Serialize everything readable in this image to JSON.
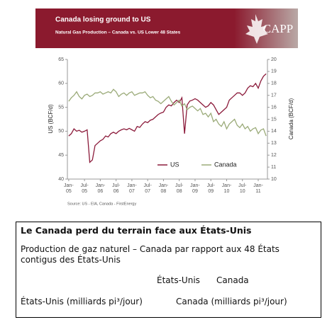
{
  "header": {
    "title": "Canada losing ground to US",
    "subtitle": "Natural Gas Production – Canada vs. US Lower 48 States",
    "logo": "CAPP"
  },
  "chart_data": {
    "type": "line",
    "categories": [
      "Jan-05",
      null,
      null,
      null,
      null,
      null,
      "Jul-05",
      null,
      null,
      null,
      null,
      null,
      "Jan-06",
      null,
      null,
      null,
      null,
      null,
      "Jul-06",
      null,
      null,
      null,
      null,
      null,
      "Jan-07",
      null,
      null,
      null,
      null,
      null,
      "Jul-07",
      null,
      null,
      null,
      null,
      null,
      "Jan-08",
      null,
      null,
      null,
      null,
      null,
      "Jul-08",
      null,
      null,
      null,
      null,
      null,
      "Jan-09",
      null,
      null,
      null,
      null,
      null,
      "Jul-09",
      null,
      null,
      null,
      null,
      null,
      "Jan-10",
      null,
      null,
      null,
      null,
      null,
      "Jul-10",
      null,
      null,
      null,
      null,
      null,
      "Jan-11",
      null,
      null,
      null
    ],
    "series": [
      {
        "name": "US",
        "color": "#8b1a3a",
        "values": [
          49,
          49.5,
          50.5,
          50,
          50.2,
          49.8,
          50,
          50.3,
          43.5,
          44,
          47,
          47.5,
          48,
          48.3,
          49,
          48.8,
          49.5,
          49.8,
          49.5,
          50,
          50.3,
          50.5,
          50.3,
          50.6,
          50.3,
          50,
          51,
          50.8,
          51.5,
          52,
          51.8,
          52.3,
          52.5,
          53,
          53.5,
          53.8,
          54,
          55,
          55.5,
          55.3,
          56,
          56.5,
          56,
          57,
          49.5,
          55.5,
          56.3,
          56.5,
          56.8,
          56.5,
          56,
          55.5,
          55,
          55.3,
          56,
          55.5,
          54.5,
          53.5,
          54,
          54.5,
          55,
          56.5,
          57,
          57.5,
          58,
          58,
          57.5,
          58,
          59,
          59.5,
          59.3,
          60,
          59,
          60.5,
          61.5,
          62
        ]
      },
      {
        "name": "Canada",
        "color": "#9aaa78",
        "axis": "y2",
        "values": [
          16.5,
          16.8,
          17,
          17.3,
          16.9,
          16.7,
          17,
          17.1,
          16.9,
          17,
          17.2,
          17.2,
          17.3,
          17.1,
          17.2,
          17.3,
          17.2,
          17.5,
          17.3,
          16.9,
          17.1,
          17.2,
          17,
          17.2,
          17.3,
          17,
          17.1,
          17.2,
          17.2,
          17.3,
          17,
          16.8,
          16.9,
          16.6,
          16.5,
          16.3,
          16.5,
          16.7,
          16.9,
          16.5,
          16.2,
          16.4,
          16.6,
          16.1,
          16.3,
          15.8,
          16,
          16.1,
          15.9,
          15.7,
          15.9,
          15.4,
          15.5,
          15.2,
          15.5,
          14.8,
          15,
          14.6,
          14.4,
          14.8,
          14.2,
          14.6,
          14.8,
          15,
          14.5,
          14.3,
          14.6,
          14.2,
          14.4,
          14,
          14.2,
          14.3,
          13.8,
          14.1,
          14.2,
          13.6
        ]
      }
    ],
    "ylabel": "US (BCF/d)",
    "y2label": "Canada (BCF/d)",
    "ylim": [
      40,
      65
    ],
    "yticks": [
      40,
      45,
      50,
      55,
      60,
      65
    ],
    "y2lim": [
      10,
      20
    ],
    "y2ticks": [
      10,
      11,
      12,
      13,
      14,
      15,
      16,
      17,
      18,
      19,
      20
    ],
    "legend": "bottom",
    "source": "Source: US - EIA, Canada - FirstEnergy"
  },
  "translation": {
    "title": "Le Canada perd du terrain face aux États-Unis",
    "subtitle": "Production de gaz naturel – Canada par rapport aux 48 États contigus des États-Unis",
    "legend_us": "États-Unis",
    "legend_canada": "Canada",
    "axis_us": "États-Unis (milliards pi³/jour)",
    "axis_canada": "Canada (milliards pi³/jour)"
  }
}
